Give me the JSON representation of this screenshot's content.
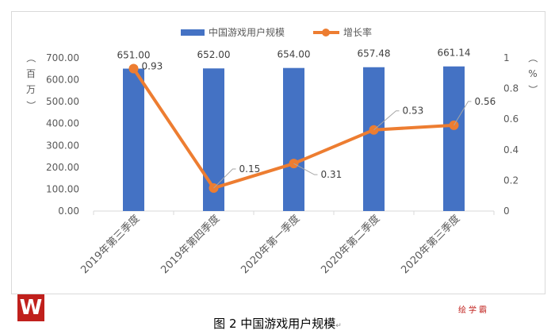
{
  "chart_data": {
    "type": "bar",
    "categories": [
      "2019年第三季度",
      "2019年第四季度",
      "2020年第一季度",
      "2020年第二季度",
      "2020年第三季度"
    ],
    "series": [
      {
        "name": "中国游戏用户规模",
        "type": "bar",
        "axis": "left",
        "color": "#4472c4",
        "values": [
          651.0,
          652.0,
          654.0,
          657.48,
          661.14
        ],
        "labels": [
          "651.00",
          "652.00",
          "654.00",
          "657.48",
          "661.14"
        ]
      },
      {
        "name": "增长率",
        "type": "line",
        "axis": "right",
        "color": "#ed7d31",
        "values": [
          0.93,
          0.15,
          0.31,
          0.53,
          0.56
        ],
        "labels": [
          "0.93",
          "0.15",
          "0.31",
          "0.53",
          "0.56"
        ]
      }
    ],
    "left_axis": {
      "label": "（百万）",
      "min": 0,
      "max": 700,
      "step": 100,
      "ticks": [
        "0.00",
        "100.00",
        "200.00",
        "300.00",
        "400.00",
        "500.00",
        "600.00",
        "700.00"
      ]
    },
    "right_axis": {
      "label": "（%）",
      "min": 0,
      "max": 1,
      "step": 0.2,
      "ticks": [
        "0",
        "0.2",
        "0.4",
        "0.6",
        "0.8",
        "1"
      ]
    },
    "legend_position": "top",
    "grid": false
  },
  "logo_text": "W",
  "watermark": "绘学霸",
  "caption": "图 2 中国游戏用户规模",
  "caption_mark": "↵"
}
